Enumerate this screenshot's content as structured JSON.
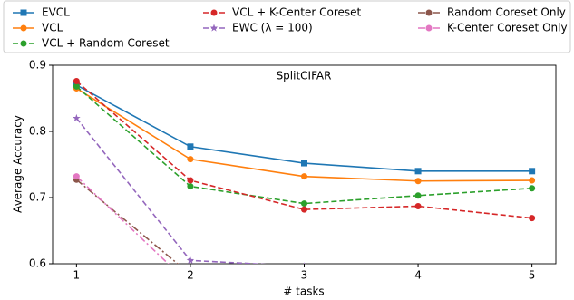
{
  "chart_data": {
    "type": "line",
    "title": "SplitCIFAR",
    "xlabel": "# tasks",
    "ylabel": "Average Accuracy",
    "x": [
      1,
      2,
      3,
      4,
      5
    ],
    "xlim": [
      0.79,
      5.21
    ],
    "ylim": [
      0.6,
      0.9
    ],
    "xticks": [
      1,
      2,
      3,
      4,
      5
    ],
    "yticks": [
      0.6,
      0.7,
      0.8,
      0.9
    ],
    "grid": false,
    "legend": "top",
    "series": [
      {
        "name": "EVCL",
        "color": "#1f77b4",
        "marker": "square",
        "linestyle": "solid",
        "values": [
          0.87,
          0.777,
          0.752,
          0.74,
          0.74
        ]
      },
      {
        "name": "VCL",
        "color": "#ff7f0e",
        "marker": "circle",
        "linestyle": "solid",
        "values": [
          0.865,
          0.758,
          0.732,
          0.725,
          0.726
        ]
      },
      {
        "name": "VCL + Random Coreset",
        "color": "#2ca02c",
        "marker": "circle",
        "linestyle": "dashed",
        "values": [
          0.868,
          0.717,
          0.691,
          0.703,
          0.714
        ]
      },
      {
        "name": "VCL + K-Center Coreset",
        "color": "#d62728",
        "marker": "circle",
        "linestyle": "dashed",
        "values": [
          0.876,
          0.726,
          0.682,
          0.687,
          0.669
        ]
      },
      {
        "name": "EWC (λ = 100)",
        "color": "#9467bd",
        "marker": "star",
        "linestyle": "dashed",
        "values": [
          0.82,
          0.605,
          0.596,
          null,
          null
        ]
      },
      {
        "name": "Random Coreset Only",
        "color": "#8c564b",
        "marker": "circle",
        "linestyle": "dashdot",
        "values": [
          0.727,
          0.584,
          null,
          null,
          null
        ]
      },
      {
        "name": "K-Center Coreset Only",
        "color": "#e377c2",
        "marker": "circle",
        "linestyle": "dashdot",
        "values": [
          0.732,
          0.568,
          null,
          null,
          null
        ]
      }
    ]
  }
}
